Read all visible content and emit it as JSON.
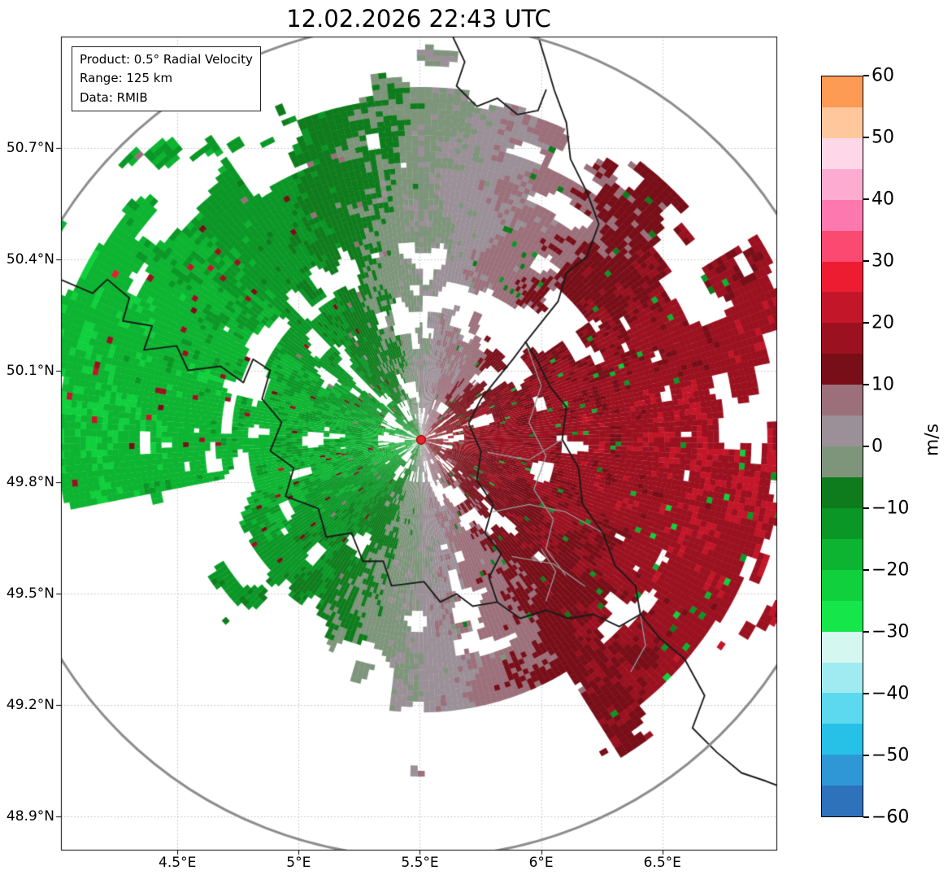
{
  "chart_data": {
    "type": "heatmap",
    "title": "12.02.2026 22:43 UTC",
    "info_box": [
      "Product: 0.5° Radial Velocity",
      "Range: 125 km",
      "Data: RMIB"
    ],
    "x_axis": {
      "ticks": [
        4.5,
        5.0,
        5.5,
        6.0,
        6.5
      ],
      "tick_labels": [
        "4.5°E",
        "5°E",
        "5.5°E",
        "6°E",
        "6.5°E"
      ],
      "range": [
        4.02,
        6.97
      ]
    },
    "y_axis": {
      "ticks": [
        50.7,
        50.4,
        50.1,
        49.8,
        49.5,
        49.2,
        48.9
      ],
      "tick_labels": [
        "50.7°N",
        "50.4°N",
        "50.1°N",
        "49.8°N",
        "49.5°N",
        "49.2°N",
        "48.9°N"
      ],
      "range": [
        48.81,
        51.0
      ]
    },
    "grid": {
      "on": true,
      "style": "dotted",
      "color": "#b8b8b8"
    },
    "colorbar": {
      "label": "m/s",
      "min": -60,
      "max": 60,
      "segment_step": 5,
      "ticks": [
        60,
        50,
        40,
        30,
        20,
        10,
        0,
        -10,
        -20,
        -30,
        -40,
        -50,
        -60
      ],
      "tick_labels": [
        "60",
        "50",
        "40",
        "30",
        "20",
        "10",
        "0",
        "−10",
        "−20",
        "−30",
        "−40",
        "−50",
        "−60"
      ],
      "palette": [
        {
          "v0": -60,
          "v1": -55,
          "c": "#2e72bc"
        },
        {
          "v0": -55,
          "v1": -50,
          "c": "#2f97d6"
        },
        {
          "v0": -50,
          "v1": -45,
          "c": "#27c0e6"
        },
        {
          "v0": -45,
          "v1": -40,
          "c": "#5cd9ee"
        },
        {
          "v0": -40,
          "v1": -35,
          "c": "#a0ebf1"
        },
        {
          "v0": -35,
          "v1": -30,
          "c": "#d4f7f0"
        },
        {
          "v0": -30,
          "v1": -25,
          "c": "#15e74b"
        },
        {
          "v0": -25,
          "v1": -20,
          "c": "#10d03d"
        },
        {
          "v0": -20,
          "v1": -15,
          "c": "#0cb431"
        },
        {
          "v0": -15,
          "v1": -10,
          "c": "#0a9726"
        },
        {
          "v0": -10,
          "v1": -5,
          "c": "#0e7c1c"
        },
        {
          "v0": -5,
          "v1": 0,
          "c": "#7e957c"
        },
        {
          "v0": 0,
          "v1": 5,
          "c": "#9b9097"
        },
        {
          "v0": 5,
          "v1": 10,
          "c": "#9b707b"
        },
        {
          "v0": 10,
          "v1": 15,
          "c": "#780e18"
        },
        {
          "v0": 15,
          "v1": 20,
          "c": "#9b1120"
        },
        {
          "v0": 20,
          "v1": 25,
          "c": "#c41629"
        },
        {
          "v0": 25,
          "v1": 30,
          "c": "#ed1c31"
        },
        {
          "v0": 30,
          "v1": 35,
          "c": "#fa4a72"
        },
        {
          "v0": 35,
          "v1": 40,
          "c": "#fc78ae"
        },
        {
          "v0": 40,
          "v1": 45,
          "c": "#fdabd0"
        },
        {
          "v0": 45,
          "v1": 50,
          "c": "#fed8e9"
        },
        {
          "v0": 50,
          "v1": 55,
          "c": "#fec89c"
        },
        {
          "v0": 55,
          "v1": 60,
          "c": "#fd9a54"
        }
      ]
    },
    "radar": {
      "center_lon": 5.505,
      "center_lat": 49.914,
      "range_km": 125,
      "marker_color": "#e8262b"
    },
    "field": {
      "description": "Doppler radial velocity: negative (green, toward radar) west of a roughly N–S zero isodop through the radar; positive (dark red, away from radar) to the east. Uniform westerly flow.",
      "wind_from_deg": 268,
      "speed_near_ms": 15,
      "speed_far_ms": 20.3,
      "zero_isodop": "approximately N–S through radar, tilting slightly with range",
      "no_data_sectors": [
        "south-southwest beyond ~55 km",
        "far south beyond ~85 km",
        "patchy northeast beyond ~90 km"
      ]
    },
    "range_ring_color": "#8c8c8c",
    "borders": {
      "country_color": "#1a1a1a",
      "region_color": "#999999",
      "country": [
        [
          [
            4.017,
            50.346
          ],
          [
            4.151,
            50.309
          ],
          [
            4.211,
            50.346
          ],
          [
            4.302,
            50.296
          ],
          [
            4.275,
            50.234
          ],
          [
            4.396,
            50.221
          ],
          [
            4.362,
            50.156
          ],
          [
            4.497,
            50.167
          ],
          [
            4.544,
            50.101
          ],
          [
            4.678,
            50.112
          ],
          [
            4.772,
            50.068
          ],
          [
            4.812,
            50.131
          ],
          [
            4.883,
            50.101
          ],
          [
            4.849,
            50.024
          ],
          [
            4.93,
            49.961
          ],
          [
            4.883,
            49.884
          ],
          [
            4.98,
            49.838
          ],
          [
            4.946,
            49.762
          ],
          [
            5.081,
            49.729
          ],
          [
            5.114,
            49.652
          ],
          [
            5.218,
            49.663
          ],
          [
            5.265,
            49.587
          ],
          [
            5.349,
            49.587
          ],
          [
            5.383,
            49.521
          ],
          [
            5.517,
            49.532
          ],
          [
            5.584,
            49.477
          ],
          [
            5.651,
            49.499
          ],
          [
            5.718,
            49.466
          ],
          [
            5.819,
            49.477
          ],
          [
            5.913,
            49.433
          ],
          [
            6.02,
            49.455
          ],
          [
            6.114,
            49.433
          ],
          [
            6.215,
            49.444
          ],
          [
            6.322,
            49.411
          ],
          [
            6.409,
            49.444
          ]
        ],
        [
          [
            5.819,
            49.477
          ],
          [
            5.785,
            49.543
          ],
          [
            5.836,
            49.608
          ],
          [
            5.768,
            49.663
          ],
          [
            5.802,
            49.74
          ],
          [
            5.735,
            49.805
          ],
          [
            5.752,
            49.882
          ],
          [
            5.701,
            49.958
          ],
          [
            5.752,
            50.024
          ],
          [
            5.819,
            50.079
          ],
          [
            5.886,
            50.133
          ],
          [
            5.936,
            50.177
          ]
        ],
        [
          [
            5.936,
            50.177
          ],
          [
            5.987,
            50.123
          ],
          [
            6.037,
            50.057
          ],
          [
            6.104,
            50.002
          ],
          [
            6.087,
            49.915
          ],
          [
            6.154,
            49.838
          ],
          [
            6.171,
            49.74
          ],
          [
            6.255,
            49.663
          ],
          [
            6.305,
            49.575
          ],
          [
            6.389,
            49.521
          ],
          [
            6.409,
            49.444
          ]
        ],
        [
          [
            5.936,
            50.177
          ],
          [
            6.003,
            50.232
          ],
          [
            6.07,
            50.287
          ],
          [
            6.104,
            50.363
          ],
          [
            6.188,
            50.407
          ],
          [
            6.238,
            50.495
          ],
          [
            6.188,
            50.582
          ],
          [
            6.121,
            50.67
          ],
          [
            6.104,
            50.768
          ],
          [
            6.054,
            50.856
          ],
          [
            6.02,
            50.932
          ],
          [
            5.987,
            51.002
          ]
        ],
        [
          [
            5.634,
            51.002
          ],
          [
            5.685,
            50.932
          ],
          [
            5.651,
            50.867
          ],
          [
            5.735,
            50.812
          ],
          [
            5.819,
            50.834
          ],
          [
            5.903,
            50.79
          ],
          [
            5.987,
            50.801
          ],
          [
            6.02,
            50.856
          ]
        ],
        [
          [
            6.409,
            49.444
          ],
          [
            6.49,
            49.379
          ],
          [
            6.591,
            49.324
          ],
          [
            6.674,
            49.225
          ],
          [
            6.624,
            49.138
          ],
          [
            6.725,
            49.072
          ],
          [
            6.826,
            49.017
          ],
          [
            6.926,
            48.995
          ],
          [
            6.97,
            48.984
          ]
        ]
      ],
      "region": [
        [
          [
            5.936,
            50.177
          ],
          [
            6.0,
            50.06
          ],
          [
            5.95,
            49.96
          ],
          [
            6.02,
            49.87
          ],
          [
            5.97,
            49.78
          ],
          [
            6.05,
            49.7
          ],
          [
            6.02,
            49.62
          ],
          [
            6.1,
            49.55
          ]
        ],
        [
          [
            5.8,
            49.72
          ],
          [
            5.95,
            49.74
          ],
          [
            6.1,
            49.72
          ],
          [
            6.255,
            49.663
          ]
        ],
        [
          [
            5.78,
            49.88
          ],
          [
            5.95,
            49.86
          ],
          [
            6.087,
            49.915
          ]
        ],
        [
          [
            5.88,
            49.6
          ],
          [
            6.05,
            49.58
          ],
          [
            6.18,
            49.52
          ]
        ],
        [
          [
            6.0,
            49.62
          ],
          [
            6.06,
            49.56
          ],
          [
            6.02,
            49.48
          ]
        ],
        [
          [
            6.409,
            49.444
          ],
          [
            6.43,
            49.36
          ],
          [
            6.37,
            49.29
          ]
        ]
      ]
    }
  }
}
